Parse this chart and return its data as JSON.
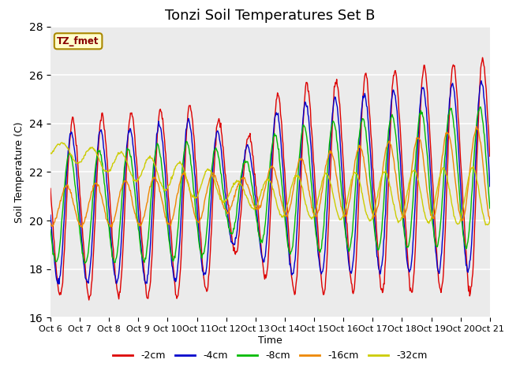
{
  "title": "Tonzi Soil Temperatures Set B",
  "xlabel": "Time",
  "ylabel": "Soil Temperature (C)",
  "ylim": [
    16,
    28
  ],
  "yticks": [
    16,
    18,
    20,
    22,
    24,
    26,
    28
  ],
  "tick_labels": [
    "Oct 6",
    "Oct 7",
    "Oct 8",
    "Oct 9",
    "Oct 10",
    "Oct 11",
    "Oct 12",
    "Oct 13",
    "Oct 14",
    "Oct 15",
    "Oct 16",
    "Oct 17",
    "Oct 18",
    "Oct 19",
    "Oct 20",
    "Oct 21"
  ],
  "colors": {
    "-2cm": "#dd0000",
    "-4cm": "#0000cc",
    "-8cm": "#00bb00",
    "-16cm": "#ee8800",
    "-32cm": "#cccc00"
  },
  "legend_labels": [
    "-2cm",
    "-4cm",
    "-8cm",
    "-16cm",
    "-32cm"
  ],
  "annotation_text": "TZ_fmet",
  "annotation_color": "#880000",
  "annotation_bg": "#ffffcc",
  "annotation_border": "#aa8800",
  "bg_color": "#ebebeb",
  "fig_color": "#ffffff",
  "grid_color": "#ffffff",
  "title_fontsize": 13,
  "label_fontsize": 9,
  "tick_fontsize": 8
}
